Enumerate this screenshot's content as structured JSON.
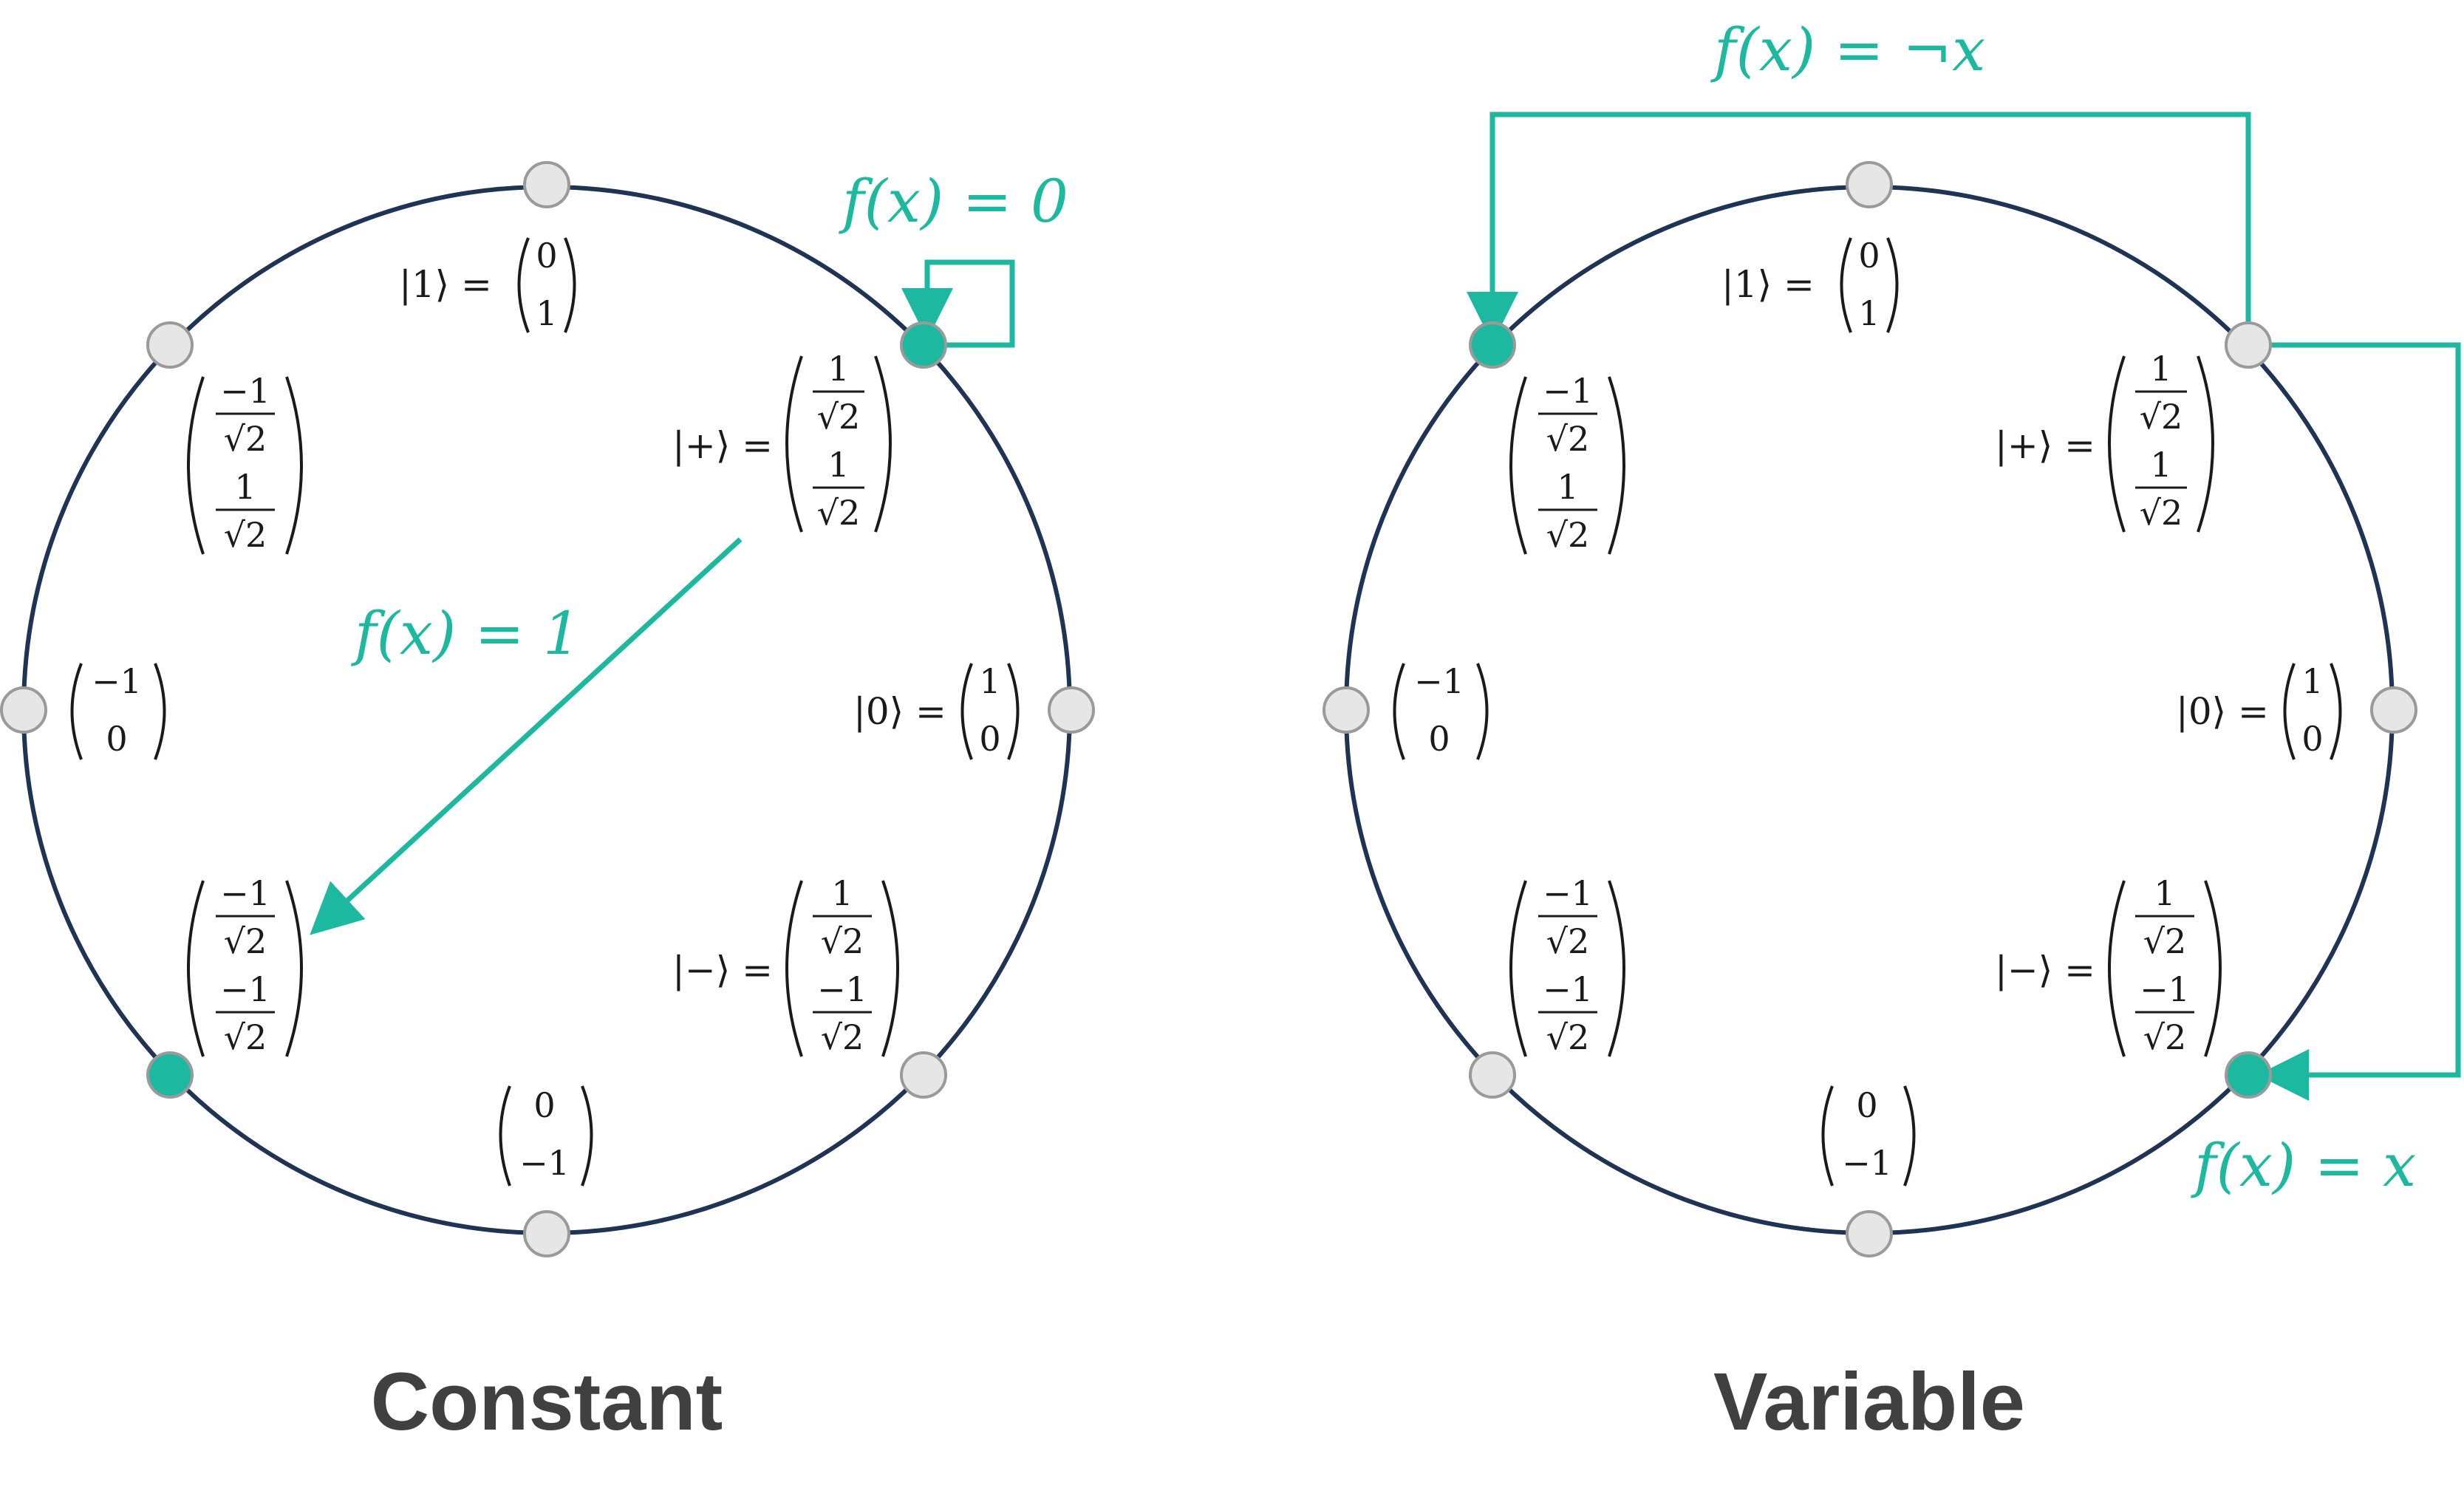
{
  "colors": {
    "circle": "#1f3354",
    "accent": "#1db8a0",
    "node_fill": "#e6e6e6",
    "node_stroke": "#9a9a9a",
    "node_active": "#1db8a0",
    "title": "#404040"
  },
  "panels": [
    {
      "title": "Constant",
      "active_states": [
        "minus_diag",
        "plus"
      ],
      "arrows": [
        {
          "from": "plus",
          "to": "plus",
          "label": "f(x) = 0"
        },
        {
          "from": "plus",
          "to": "minus_diag",
          "label": "f(x) = 1"
        }
      ]
    },
    {
      "title": "Variable",
      "active_states": [
        "minus_diag_top",
        "minus"
      ],
      "arrows": [
        {
          "from": "plus",
          "to": "minus_diag_top",
          "label": "f(x) = ¬x"
        },
        {
          "from": "plus",
          "to": "minus",
          "label": "f(x) = x"
        }
      ]
    }
  ],
  "states": {
    "ket1": {
      "label": "|1⟩ =",
      "top": "0",
      "bottom": "1"
    },
    "plus": {
      "label": "|+⟩ =",
      "top_num": "1",
      "top_den": "√2",
      "bottom_num": "1",
      "bottom_den": "√2"
    },
    "ket0": {
      "label": "|0⟩ =",
      "top": "1",
      "bottom": "0"
    },
    "minus": {
      "label": "|−⟩ =",
      "top_num": "1",
      "top_den": "√2",
      "bottom_num": "−1",
      "bottom_den": "√2"
    },
    "neg_ket1": {
      "top": "0",
      "bottom": "−1"
    },
    "minus_diag": {
      "top_num": "−1",
      "top_den": "√2",
      "bottom_num": "−1",
      "bottom_den": "√2"
    },
    "neg_ket0": {
      "top": "−1",
      "bottom": "0"
    },
    "minus_diag_top": {
      "top_num": "−1",
      "top_den": "√2",
      "bottom_num": "1",
      "bottom_den": "√2"
    }
  }
}
